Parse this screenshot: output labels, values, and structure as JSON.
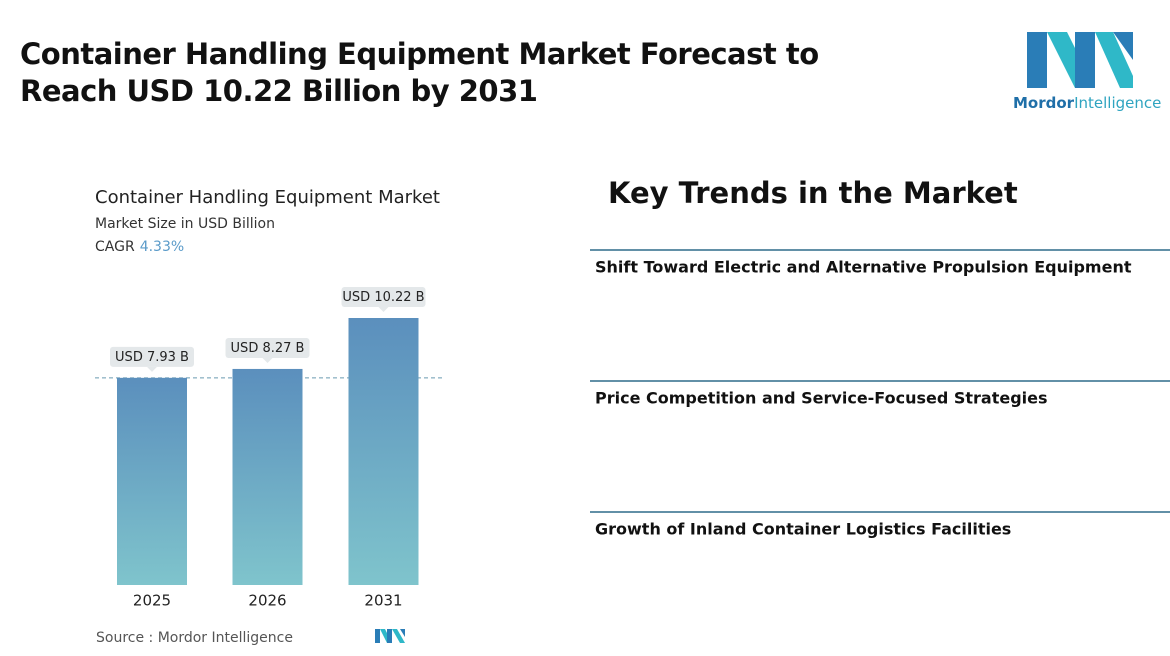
{
  "header": {
    "title": "Container Handling Equipment Market Forecast to Reach USD 10.22 Billion by 2031"
  },
  "logo": {
    "brand": "Mordor",
    "suffix": "Intelligence"
  },
  "chart_data": {
    "type": "bar",
    "title": "Container Handling Equipment Market",
    "subtitle": "Market Size in USD Billion",
    "cagr_label": "CAGR",
    "cagr": "4.33%",
    "categories": [
      "2025",
      "2026",
      "2031"
    ],
    "values": [
      7.93,
      8.27,
      10.22
    ],
    "value_labels": [
      "USD 7.93 B",
      "USD 8.27 B",
      "USD 10.22 B"
    ],
    "color_top": "#5b8fbd",
    "color_bottom": "#7fc4cc",
    "source": "Source : Mordor Intelligence"
  },
  "trends": {
    "title": "Key Trends in the Market",
    "items": [
      "Shift Toward Electric and Alternative Propulsion Equipment",
      "Price Competition and Service-Focused Strategies",
      "Growth of Inland Container Logistics Facilities"
    ]
  }
}
